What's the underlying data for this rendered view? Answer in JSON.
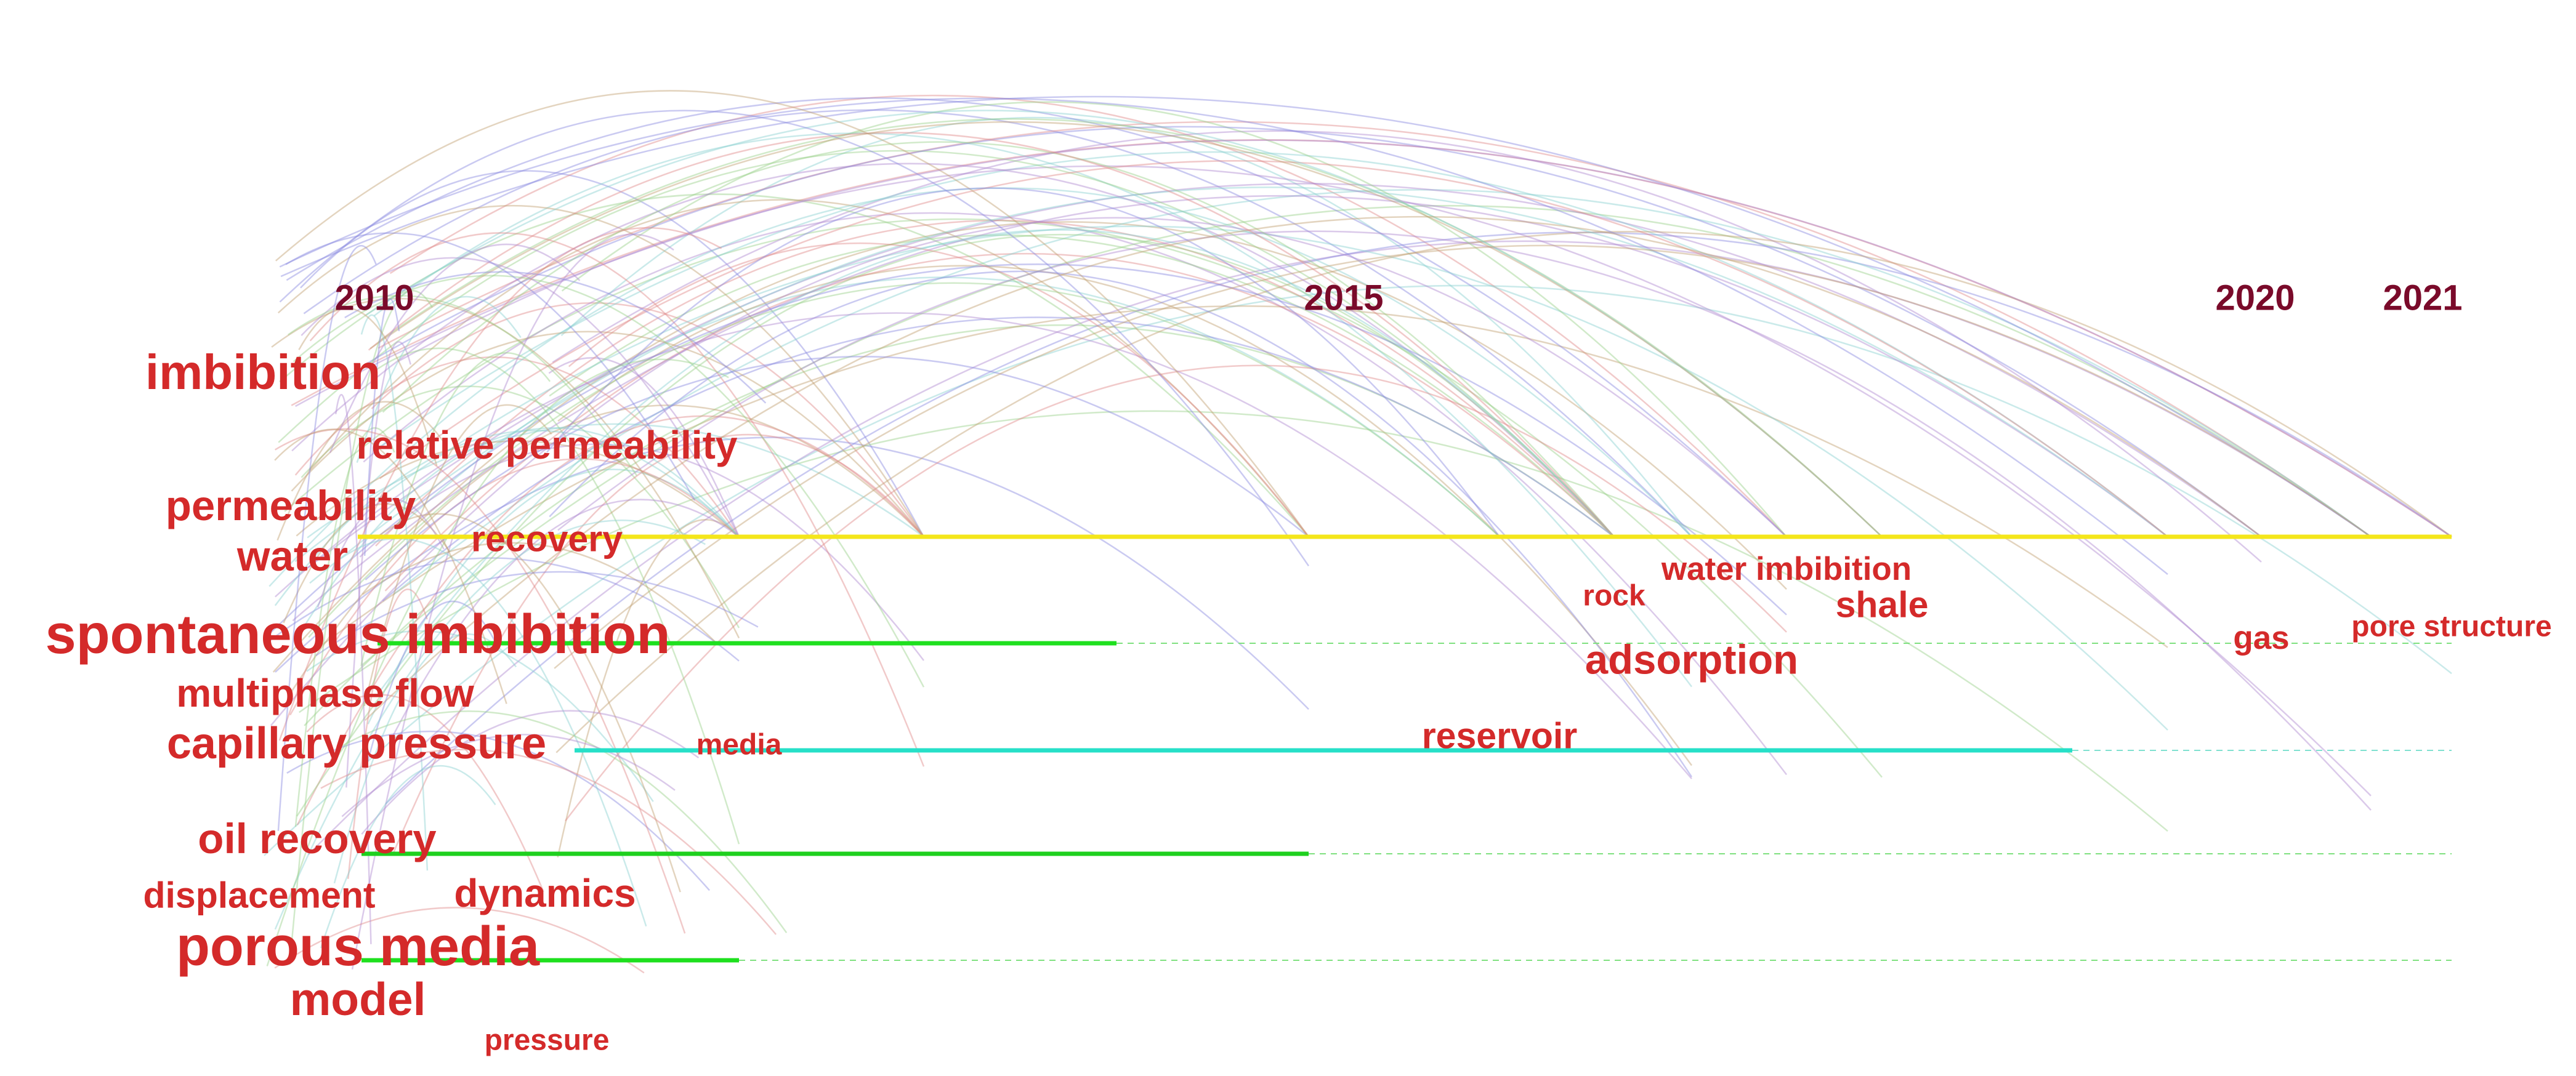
{
  "timeline": {
    "years": [
      "2010",
      "2015",
      "2020",
      "2021"
    ],
    "keywords": [
      "imbibition",
      "relative permeability",
      "permeability",
      "water",
      "recovery",
      "spontaneous imbibition",
      "multiphase flow",
      "capillary pressure",
      "media",
      "oil recovery",
      "displacement",
      "dynamics",
      "porous media",
      "model",
      "pressure",
      "rock",
      "water imbibition",
      "shale",
      "adsorption",
      "reservoir",
      "gas",
      "pore structure"
    ]
  }
}
